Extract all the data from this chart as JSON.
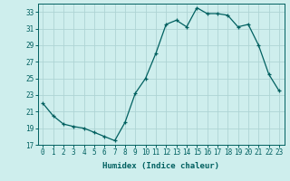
{
  "x": [
    0,
    1,
    2,
    3,
    4,
    5,
    6,
    7,
    8,
    9,
    10,
    11,
    12,
    13,
    14,
    15,
    16,
    17,
    18,
    19,
    20,
    21,
    22,
    23
  ],
  "y": [
    22.0,
    20.5,
    19.5,
    19.2,
    19.0,
    18.5,
    18.0,
    17.5,
    19.7,
    23.2,
    25.0,
    28.0,
    31.5,
    32.0,
    31.2,
    33.5,
    32.8,
    32.8,
    32.6,
    31.2,
    31.5,
    29.0,
    25.5,
    23.5
  ],
  "line_color": "#006060",
  "marker": "+",
  "marker_size": 3,
  "bg_color": "#ceeeed",
  "grid_color": "#aed4d4",
  "xlabel": "Humidex (Indice chaleur)",
  "xlim": [
    -0.5,
    23.5
  ],
  "ylim": [
    17,
    34
  ],
  "yticks": [
    17,
    19,
    21,
    23,
    25,
    27,
    29,
    31,
    33
  ],
  "xtick_labels": [
    "0",
    "1",
    "2",
    "3",
    "4",
    "5",
    "6",
    "7",
    "8",
    "9",
    "10",
    "11",
    "12",
    "13",
    "14",
    "15",
    "16",
    "17",
    "18",
    "19",
    "20",
    "21",
    "22",
    "23"
  ],
  "tick_color": "#006060",
  "label_fontsize": 5.5,
  "xlabel_fontsize": 6.5,
  "axis_color": "#006060"
}
